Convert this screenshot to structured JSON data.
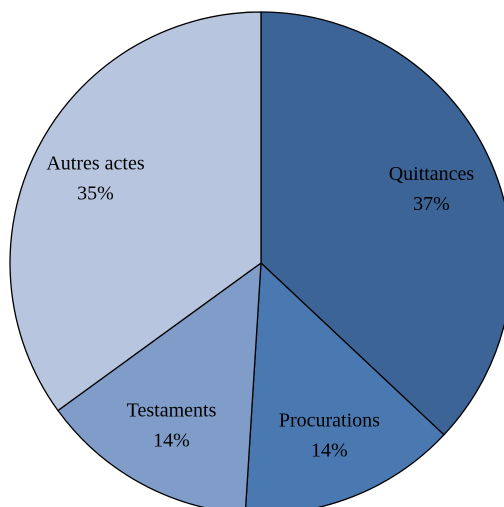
{
  "chart_data": {
    "type": "pie",
    "categories": [
      "Quittances",
      "Procurations",
      "Testaments",
      "Autres actes"
    ],
    "values": [
      37,
      14,
      14,
      35
    ],
    "value_labels": [
      "37%",
      "14%",
      "14%",
      "35%"
    ],
    "colors": [
      "#3d6496",
      "#4a78b0",
      "#7f9dc8",
      "#b8c5df"
    ]
  }
}
